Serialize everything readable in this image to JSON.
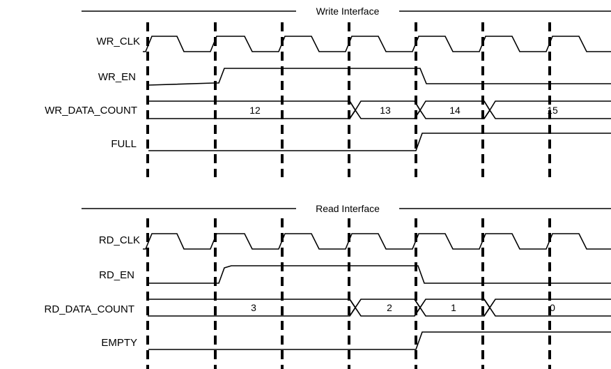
{
  "write_interface": {
    "title": "Write Interface",
    "signals": {
      "clk": "WR_CLK",
      "en": "WR_EN",
      "count": "WR_DATA_COUNT",
      "flag": "FULL"
    },
    "count_values": [
      "12",
      "13",
      "14",
      "15"
    ]
  },
  "read_interface": {
    "title": "Read Interface",
    "signals": {
      "clk": "RD_CLK",
      "en": "RD_EN",
      "count": "RD_DATA_COUNT",
      "flag": "EMPTY"
    },
    "count_values": [
      "3",
      "2",
      "1",
      "0"
    ]
  }
}
